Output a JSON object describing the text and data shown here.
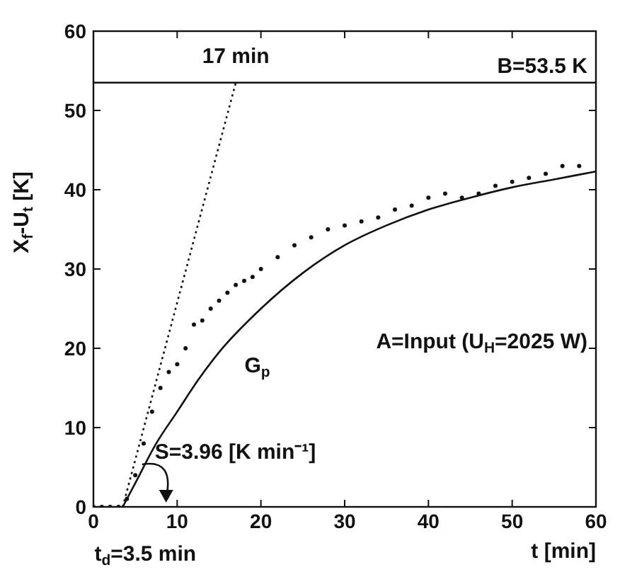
{
  "chart_data": {
    "type": "line",
    "xlabel": "t [min]",
    "ylabel": "X$_{f}$-U$_{t}$ [K]",
    "xlim": [
      0,
      60
    ],
    "xticks": [
      0,
      10,
      20,
      30,
      40,
      50,
      60
    ],
    "ylim": [
      0,
      60
    ],
    "yticks": [
      0,
      10,
      20,
      30,
      40,
      50,
      60
    ],
    "grid": false,
    "legend": false,
    "series": [
      {
        "name": "G$_{p}$",
        "color": "#111111",
        "line_style": "solid",
        "x": [
          3.5,
          5,
          7.5,
          10,
          12.5,
          15,
          20,
          25,
          30,
          35,
          40,
          45,
          50,
          55,
          60
        ],
        "values": [
          0,
          3,
          8,
          12,
          16,
          19.5,
          25,
          29.5,
          33,
          35.5,
          37.5,
          39,
          40.3,
          41.3,
          42.3
        ]
      },
      {
        "type": "scatter",
        "color": "#111111",
        "x": [
          0,
          1,
          2,
          3,
          4,
          5,
          6,
          7,
          8,
          9,
          10,
          11,
          12,
          13,
          14,
          15,
          16,
          17,
          18,
          19,
          20,
          22,
          24,
          26,
          28,
          30,
          32,
          34,
          36,
          38,
          40,
          42,
          44,
          46,
          48,
          50,
          52,
          54,
          56,
          58
        ],
        "values": [
          0,
          0,
          0,
          0,
          1,
          4,
          8,
          12,
          15,
          17,
          18,
          20,
          23,
          23.5,
          25,
          26,
          27,
          28,
          28.5,
          29,
          30,
          31.5,
          33,
          34,
          35,
          35.5,
          36,
          36.5,
          37.5,
          38,
          39,
          39.5,
          39,
          39.5,
          40.5,
          41,
          41.5,
          42,
          43,
          43
        ]
      },
      {
        "color": "#111111",
        "line_style": "dotted",
        "x": [
          3.5,
          17
        ],
        "values": [
          0,
          53.5
        ]
      }
    ],
    "ref_lines": [
      {
        "axis": "y",
        "value": 53.5,
        "label": "B=53.5 K",
        "color": "#111111"
      }
    ],
    "annotations": [
      {
        "text": "17 min",
        "x": 17,
        "y": 53.5
      },
      {
        "text": "S=3.96 [K min⁻¹]",
        "x": 5.3,
        "y": 5
      },
      {
        "text": "t$_{d}$=3.5 min",
        "x": 3.5,
        "y": 0
      },
      "A=Input (U$_{H}$=2025 W)"
    ]
  }
}
